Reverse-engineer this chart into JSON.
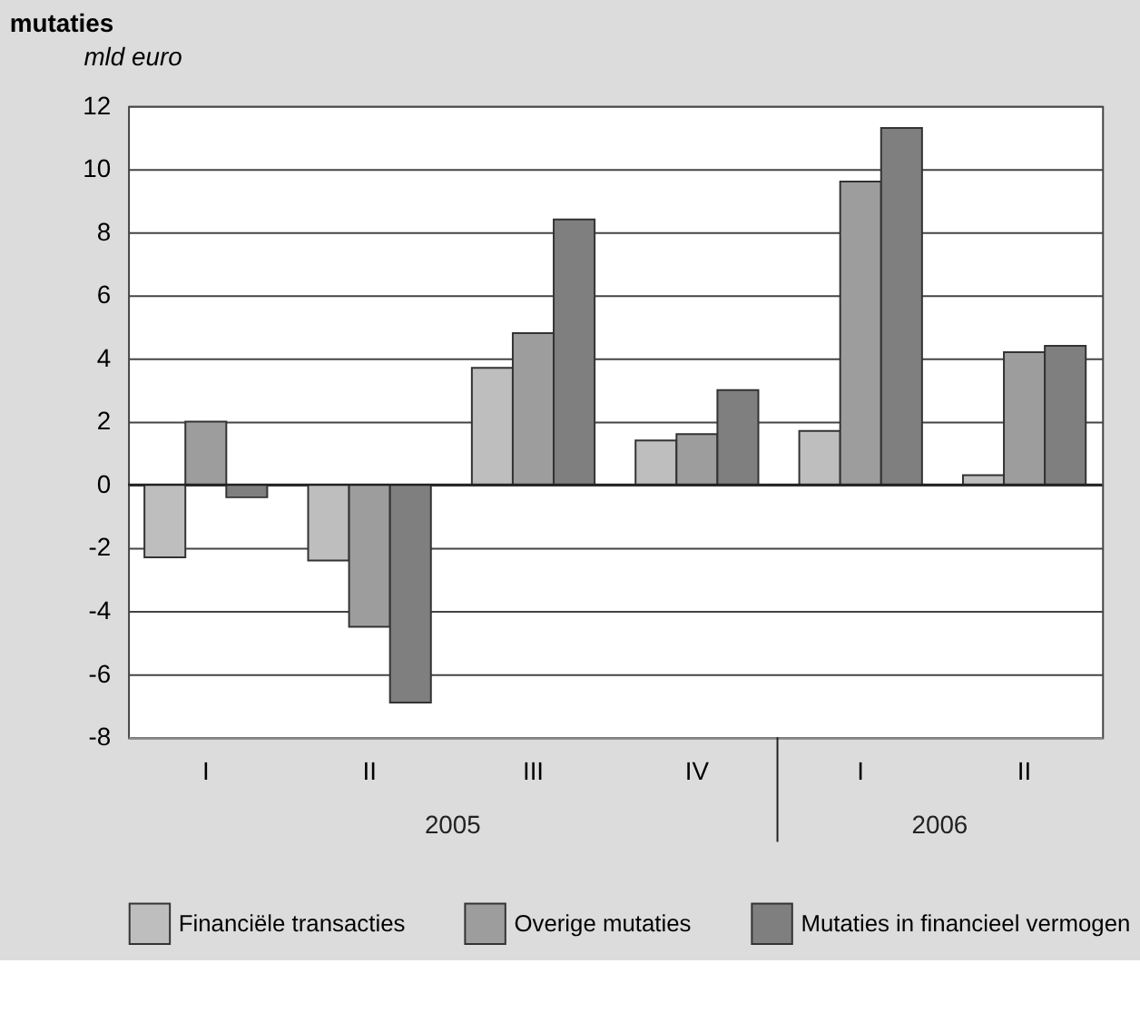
{
  "chart_data": {
    "type": "bar",
    "title": "mutaties",
    "ylabel": "mld euro",
    "categories": [
      "I",
      "II",
      "III",
      "IV",
      "I",
      "II"
    ],
    "series": [
      {
        "name": "Financiële transacties",
        "color": "#bebebe",
        "values": [
          -2.3,
          -2.4,
          3.7,
          1.4,
          1.7,
          0.3
        ]
      },
      {
        "name": "Overige mutaties",
        "color": "#9d9d9d",
        "values": [
          2.0,
          -4.5,
          4.8,
          1.6,
          9.6,
          4.2
        ]
      },
      {
        "name": "Mutaties in financieel vermogen",
        "color": "#7f7f7f",
        "values": [
          -0.4,
          -6.9,
          8.4,
          3.0,
          11.3,
          4.4
        ]
      }
    ],
    "annotations": [
      "2005",
      "2006"
    ],
    "ylim": [
      -8,
      12
    ],
    "yticks": [
      -8,
      -6,
      -4,
      -2,
      0,
      2,
      4,
      6,
      8,
      10,
      12
    ],
    "grid": "y",
    "legend": "bottom"
  }
}
